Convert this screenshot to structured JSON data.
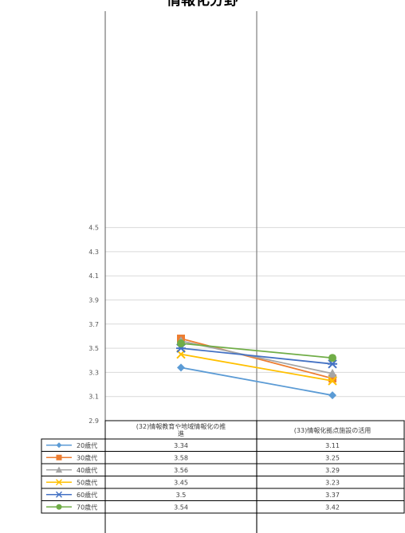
{
  "chart_data": {
    "type": "line",
    "title": "情報化分野",
    "categories": [
      "(32)情報教育や地域情報化の推進",
      "(33)情報化拠点施設の活用"
    ],
    "category_lines": [
      [
        "(32)情報教育や地域情報化の推",
        "進"
      ],
      [
        "(33)情報化拠点施設の活用"
      ]
    ],
    "ylim": [
      2.9,
      4.6
    ],
    "yticks": [
      "2.9",
      "3.1",
      "3.3",
      "3.5",
      "3.7",
      "3.9",
      "4.1",
      "4.3",
      "4.5"
    ],
    "grid": true,
    "legend_position": "table-left",
    "series": [
      {
        "name": "20歳代",
        "values": [
          3.34,
          3.11
        ],
        "labels": [
          "3.34",
          "3.11"
        ],
        "color": "#5b9bd5",
        "marker": "diamond"
      },
      {
        "name": "30歳代",
        "values": [
          3.58,
          3.25
        ],
        "labels": [
          "3.58",
          "3.25"
        ],
        "color": "#ed7d31",
        "marker": "square"
      },
      {
        "name": "40歳代",
        "values": [
          3.56,
          3.29
        ],
        "labels": [
          "3.56",
          "3.29"
        ],
        "color": "#a5a5a5",
        "marker": "triangle"
      },
      {
        "name": "50歳代",
        "values": [
          3.45,
          3.23
        ],
        "labels": [
          "3.45",
          "3.23"
        ],
        "color": "#ffc000",
        "marker": "x"
      },
      {
        "name": "60歳代",
        "values": [
          3.5,
          3.37
        ],
        "labels": [
          "3.5",
          "3.37"
        ],
        "color": "#4472c4",
        "marker": "star"
      },
      {
        "name": "70歳代",
        "values": [
          3.54,
          3.42
        ],
        "labels": [
          "3.54",
          "3.42"
        ],
        "color": "#70ad47",
        "marker": "circle"
      }
    ]
  }
}
